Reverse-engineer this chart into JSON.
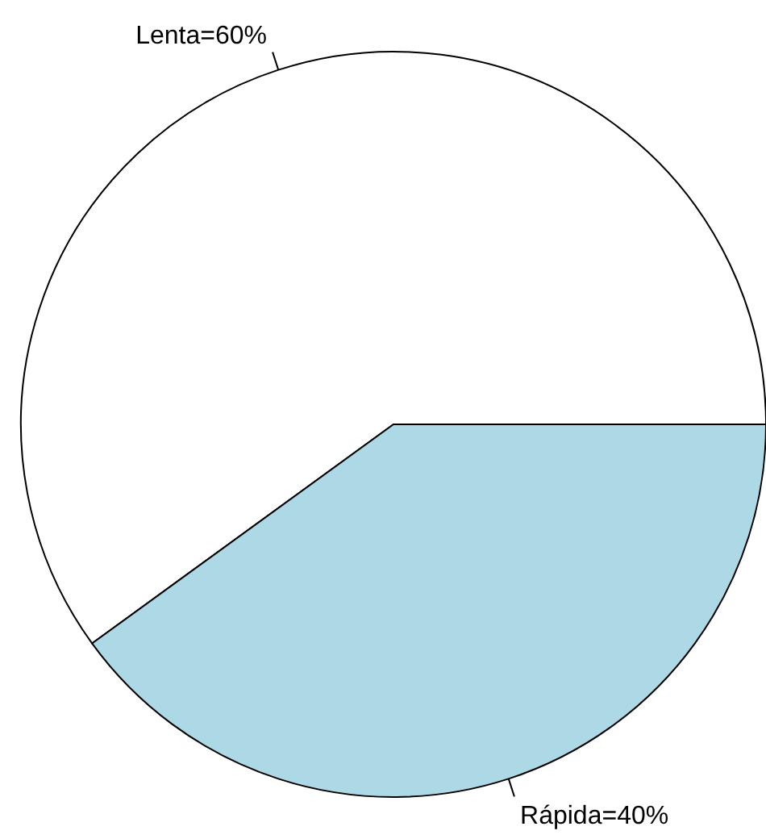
{
  "chart_data": {
    "type": "pie",
    "categories": [
      "Lenta=60%",
      "Rápida=40%"
    ],
    "values": [
      60,
      40
    ],
    "colors": [
      "#ffffff",
      "#add8e6"
    ]
  }
}
